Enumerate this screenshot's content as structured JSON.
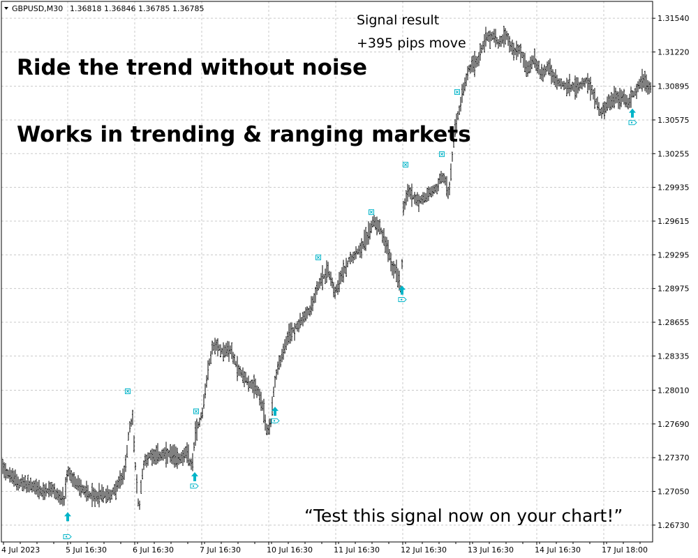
{
  "header": {
    "symbol": "GBPUSD,M30",
    "ohlc": "1.36818 1.36846 1.36785 1.36785"
  },
  "overlay": {
    "signal_title": "Signal result",
    "signal_value": "+395 pips move",
    "line1": "Ride the trend without noise",
    "line2": "Works in trending & ranging markets",
    "quote": "“Test this signal now on your chart!”"
  },
  "colors": {
    "bars": "#000000",
    "grid": "#c8c8c8",
    "signal": "#00b4c8"
  },
  "chart_data": {
    "type": "ohlc",
    "title": "",
    "xlabel": "",
    "ylabel": "",
    "grid": true,
    "ylim": [
      1.2657,
      1.317
    ],
    "y_ticks": [
      "1.31540",
      "1.31220",
      "1.30895",
      "1.30575",
      "1.30255",
      "1.29935",
      "1.29615",
      "1.29295",
      "1.28975",
      "1.28655",
      "1.28335",
      "1.28010",
      "1.27690",
      "1.27370",
      "1.27050",
      "1.26730"
    ],
    "x_ticks": [
      "4 Jul 2023",
      "5 Jul 16:30",
      "6 Jul 16:30",
      "7 Jul 16:30",
      "10 Jul 16:30",
      "11 Jul 16:30",
      "12 Jul 16:30",
      "13 Jul 16:30",
      "14 Jul 16:30",
      "17 Jul 18:00"
    ],
    "price_path": [
      [
        0,
        1.2734
      ],
      [
        10,
        1.2723
      ],
      [
        25,
        1.2714
      ],
      [
        35,
        1.2712
      ],
      [
        50,
        1.2709
      ],
      [
        60,
        1.2704
      ],
      [
        75,
        1.2707
      ],
      [
        85,
        1.27
      ],
      [
        92,
        1.2695
      ],
      [
        97,
        1.2725
      ],
      [
        105,
        1.2715
      ],
      [
        120,
        1.2706
      ],
      [
        135,
        1.27
      ],
      [
        145,
        1.2702
      ],
      [
        160,
        1.2702
      ],
      [
        170,
        1.2712
      ],
      [
        178,
        1.2722
      ],
      [
        185,
        1.2762
      ],
      [
        190,
        1.2775
      ],
      [
        194,
        1.2728
      ],
      [
        199,
        1.2685
      ],
      [
        205,
        1.273
      ],
      [
        215,
        1.274
      ],
      [
        230,
        1.2739
      ],
      [
        245,
        1.274
      ],
      [
        255,
        1.2736
      ],
      [
        268,
        1.2741
      ],
      [
        275,
        1.2728
      ],
      [
        280,
        1.276
      ],
      [
        290,
        1.278
      ],
      [
        298,
        1.282
      ],
      [
        305,
        1.2843
      ],
      [
        312,
        1.2842
      ],
      [
        320,
        1.2838
      ],
      [
        330,
        1.284
      ],
      [
        340,
        1.2822
      ],
      [
        352,
        1.2812
      ],
      [
        360,
        1.2805
      ],
      [
        370,
        1.28
      ],
      [
        378,
        1.278
      ],
      [
        383,
        1.276
      ],
      [
        388,
        1.277
      ],
      [
        393,
        1.2808
      ],
      [
        400,
        1.2827
      ],
      [
        405,
        1.2835
      ],
      [
        415,
        1.2855
      ],
      [
        430,
        1.2865
      ],
      [
        445,
        1.2878
      ],
      [
        455,
        1.29
      ],
      [
        460,
        1.2905
      ],
      [
        470,
        1.2915
      ],
      [
        480,
        1.2895
      ],
      [
        490,
        1.291
      ],
      [
        500,
        1.2925
      ],
      [
        515,
        1.2935
      ],
      [
        525,
        1.2945
      ],
      [
        535,
        1.2962
      ],
      [
        545,
        1.2955
      ],
      [
        555,
        1.2935
      ],
      [
        562,
        1.2918
      ],
      [
        568,
        1.2915
      ],
      [
        575,
        1.2895
      ],
      [
        578,
        1.2975
      ],
      [
        585,
        1.299
      ],
      [
        595,
        1.2982
      ],
      [
        605,
        1.2981
      ],
      [
        615,
        1.2988
      ],
      [
        625,
        1.2992
      ],
      [
        633,
        1.3005
      ],
      [
        638,
        1.3
      ],
      [
        643,
        1.2984
      ],
      [
        650,
        1.304
      ],
      [
        660,
        1.3075
      ],
      [
        672,
        1.3105
      ],
      [
        685,
        1.3115
      ],
      [
        695,
        1.3135
      ],
      [
        705,
        1.3138
      ],
      [
        715,
        1.313
      ],
      [
        725,
        1.314
      ],
      [
        735,
        1.3122
      ],
      [
        745,
        1.3125
      ],
      [
        755,
        1.3105
      ],
      [
        765,
        1.3115
      ],
      [
        775,
        1.31
      ],
      [
        785,
        1.3108
      ],
      [
        795,
        1.3095
      ],
      [
        810,
        1.309
      ],
      [
        825,
        1.3088
      ],
      [
        840,
        1.3095
      ],
      [
        850,
        1.3082
      ],
      [
        860,
        1.3065
      ],
      [
        870,
        1.3072
      ],
      [
        880,
        1.3078
      ],
      [
        890,
        1.308
      ],
      [
        900,
        1.3075
      ],
      [
        910,
        1.3085
      ],
      [
        920,
        1.3095
      ],
      [
        930,
        1.309
      ]
    ],
    "signals": [
      {
        "kind": "buy",
        "x": 97,
        "price": 1.268
      },
      {
        "kind": "buy",
        "x": 279,
        "price": 1.2718
      },
      {
        "kind": "buy",
        "x": 394,
        "price": 1.278
      },
      {
        "kind": "buy",
        "x": 576,
        "price": 1.2895
      },
      {
        "kind": "buy",
        "x": 906,
        "price": 1.3063
      }
    ],
    "exit_markers": [
      {
        "x": 183,
        "price": 1.28
      },
      {
        "x": 281,
        "price": 1.2781
      },
      {
        "x": 456,
        "price": 1.2927
      },
      {
        "x": 532,
        "price": 1.297
      },
      {
        "x": 581,
        "price": 1.3015
      },
      {
        "x": 633,
        "price": 1.3025
      },
      {
        "x": 655,
        "price": 1.3084
      }
    ],
    "entry_markers": [
      {
        "x": 96,
        "price": 1.2662
      },
      {
        "x": 278,
        "price": 1.271
      },
      {
        "x": 394,
        "price": 1.2772
      },
      {
        "x": 576,
        "price": 1.2887
      },
      {
        "x": 906,
        "price": 1.3055
      }
    ]
  }
}
